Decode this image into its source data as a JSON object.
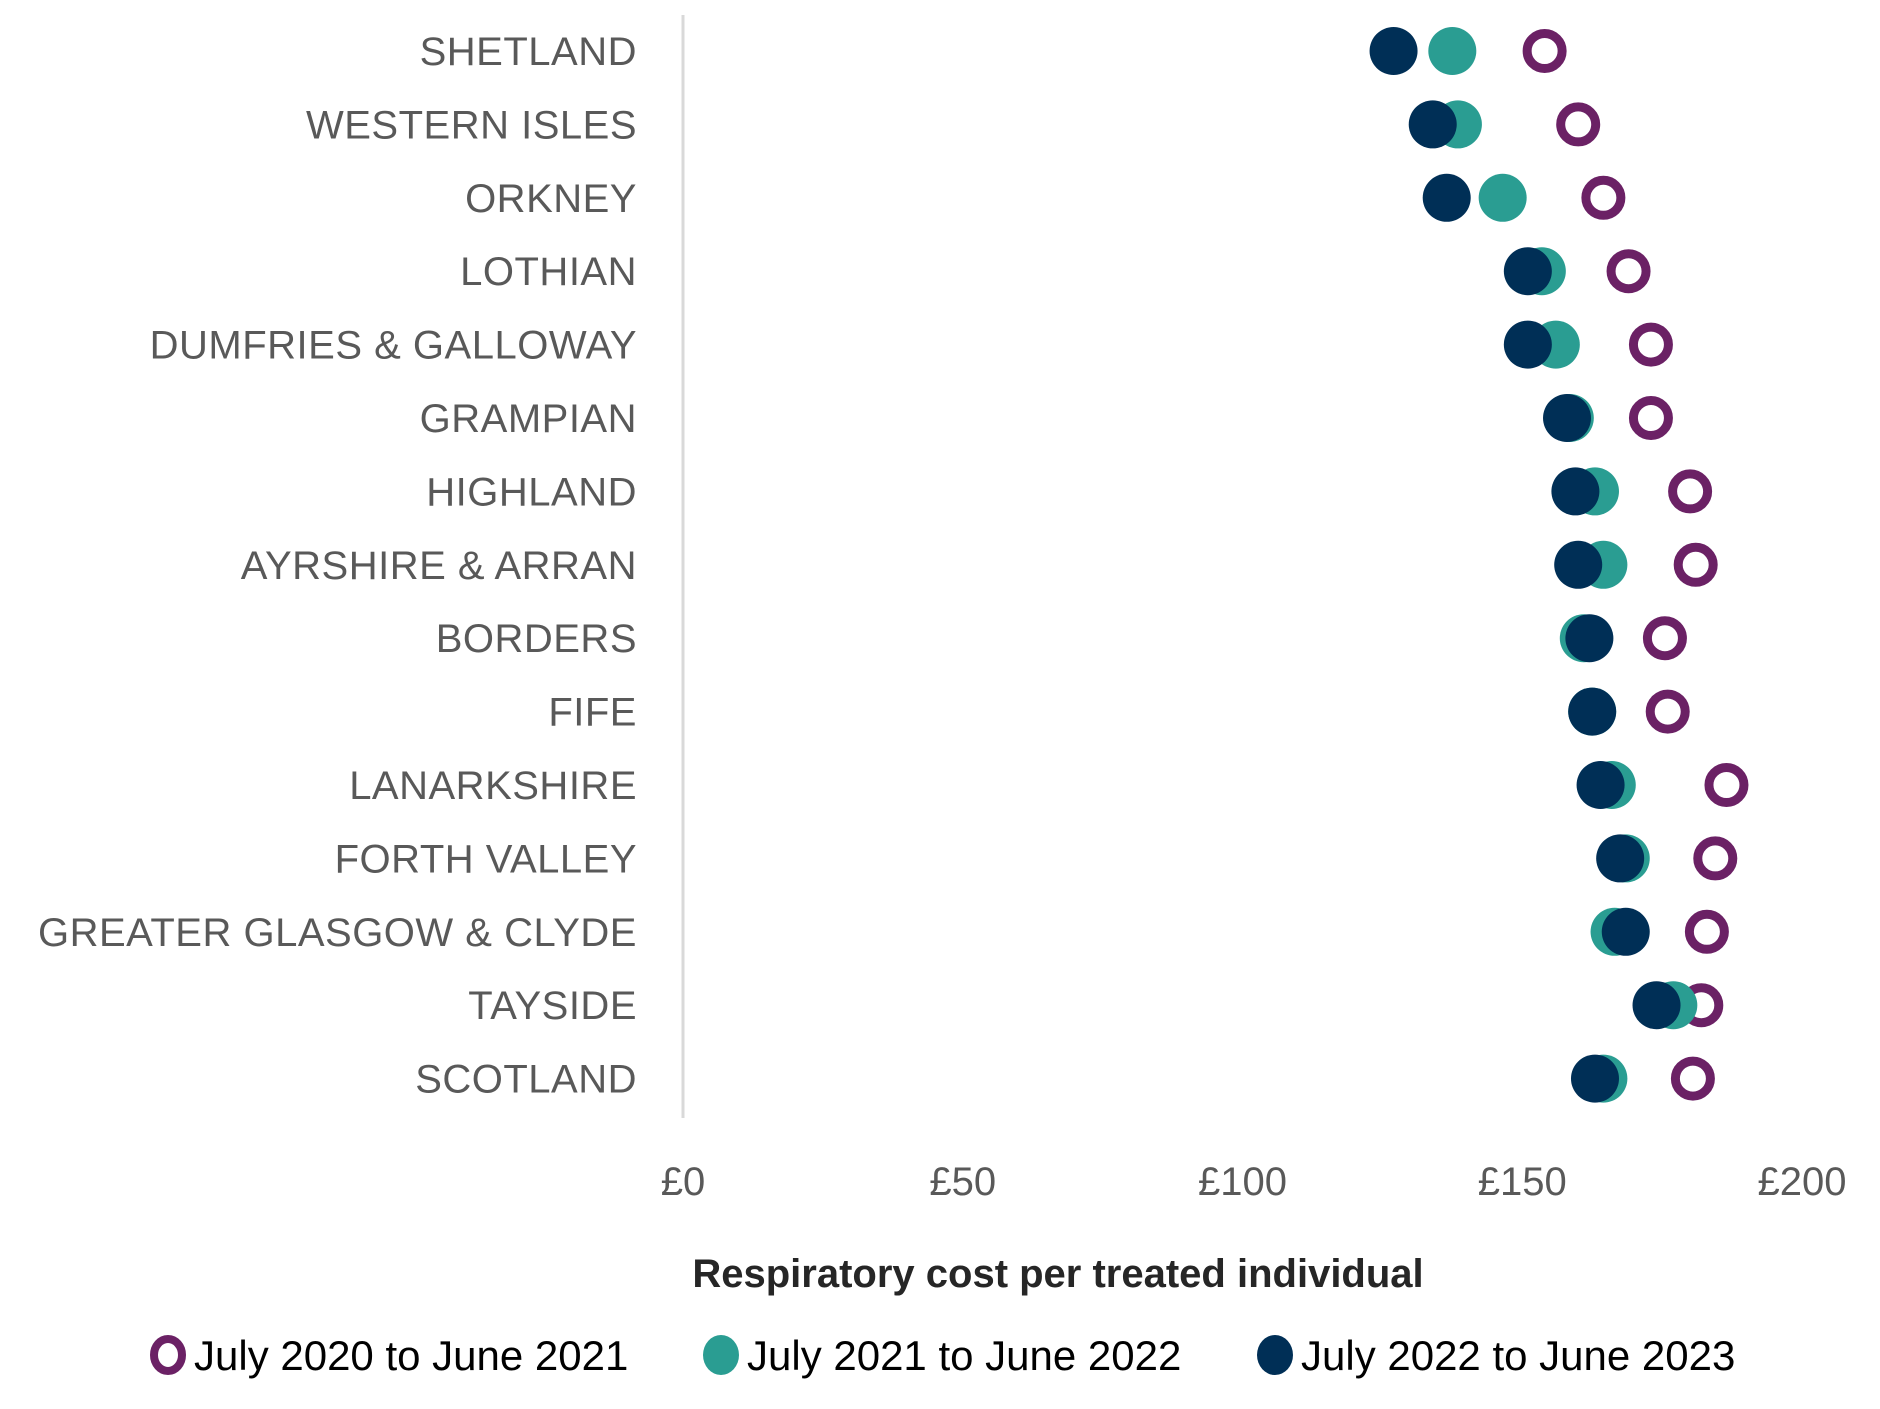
{
  "chart_data": {
    "type": "scatter",
    "subtype": "dot-plot",
    "orientation": "horizontal",
    "title": "",
    "xlabel": "Respiratory cost per treated individual",
    "ylabel": "",
    "xlim": [
      0,
      200
    ],
    "x_ticks": [
      0,
      50,
      100,
      150,
      200
    ],
    "x_tick_labels": [
      "£0",
      "£50",
      "£100",
      "£150",
      "£200"
    ],
    "grid": false,
    "legend_position": "bottom",
    "categories": [
      "SHETLAND",
      "WESTERN ISLES",
      "ORKNEY",
      "LOTHIAN",
      "DUMFRIES & GALLOWAY",
      "GRAMPIAN",
      "HIGHLAND",
      "AYRSHIRE & ARRAN",
      "BORDERS",
      "FIFE",
      "LANARKSHIRE",
      "FORTH VALLEY",
      "GREATER GLASGOW & CLYDE",
      "TAYSIDE",
      "SCOTLAND"
    ],
    "series": [
      {
        "name": "July 2020 to June 2021",
        "marker": "hollow-circle",
        "color": "#6B2165",
        "values": [
          154,
          160,
          164.5,
          169,
          173,
          173,
          180,
          181,
          175.5,
          176,
          186.5,
          184.5,
          183,
          182,
          180.5
        ]
      },
      {
        "name": "July 2021 to June 2022",
        "marker": "filled-circle",
        "color": "#2A9D92",
        "values": [
          137.5,
          138.5,
          146.5,
          153.5,
          156,
          158.5,
          163,
          164.5,
          161,
          162.5,
          166,
          168.5,
          166.5,
          177,
          164.5
        ]
      },
      {
        "name": "July 2022 to June 2023",
        "marker": "filled-circle",
        "color": "#002F56",
        "values": [
          127,
          134,
          136.5,
          151,
          151,
          158,
          159.5,
          160,
          162,
          162.5,
          164,
          167.5,
          168.5,
          174,
          163
        ]
      }
    ]
  },
  "colors": {
    "axis_line": "#D9D9D9",
    "category_text": "#595959",
    "axis_title_text": "#262626"
  }
}
